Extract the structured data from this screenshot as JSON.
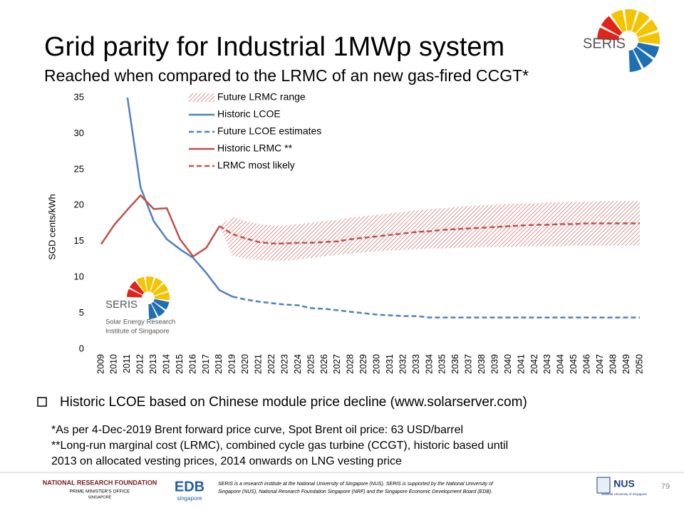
{
  "header": {
    "title": "Grid parity for Industrial 1MWp system",
    "subtitle": "Reached when compared to the LRMC of an new gas-fired CCGT*"
  },
  "logo": {
    "text": "SERIS"
  },
  "inset_logo": {
    "name": "SERIS",
    "lines": [
      "Solar Energy Research",
      "Institute of Singapore"
    ]
  },
  "chart_data": {
    "type": "line",
    "y_label": "SGD cents/kWh",
    "categories": [
      "2009",
      "2010",
      "2011",
      "2012",
      "2013",
      "2014",
      "2015",
      "2016",
      "2017",
      "2018",
      "2019",
      "2020",
      "2021",
      "2022",
      "2023",
      "2024",
      "2025",
      "2026",
      "2027",
      "2028",
      "2029",
      "2030",
      "2031",
      "2032",
      "2033",
      "2034",
      "2035",
      "2036",
      "2037",
      "2038",
      "2039",
      "2040",
      "2041",
      "2042",
      "2043",
      "2044",
      "2045",
      "2046",
      "2047",
      "2048",
      "2049",
      "2050"
    ],
    "ylim": [
      0,
      35
    ],
    "yticks": [
      0,
      5,
      10,
      15,
      20,
      25,
      30,
      35
    ],
    "grid": false,
    "legend": "top-left",
    "series": [
      {
        "name": "Future LRMC range",
        "color": "#c0504d",
        "type": "band",
        "low": [
          null,
          null,
          null,
          null,
          null,
          null,
          null,
          null,
          null,
          17.1,
          13.0,
          12.6,
          12.4,
          12.3,
          12.3,
          12.5,
          12.7,
          12.9,
          13.1,
          13.3,
          13.5,
          13.6,
          13.7,
          13.8,
          13.9,
          14.0,
          14.0,
          14.1,
          14.1,
          14.2,
          14.2,
          14.2,
          14.3,
          14.3,
          14.3,
          14.3,
          14.4,
          14.4,
          14.4,
          14.4,
          14.4,
          14.4
        ],
        "high": [
          null,
          null,
          null,
          null,
          null,
          null,
          null,
          null,
          null,
          17.1,
          18.4,
          17.8,
          17.4,
          17.2,
          17.2,
          17.4,
          17.6,
          17.8,
          18.0,
          18.3,
          18.5,
          18.7,
          18.9,
          19.1,
          19.3,
          19.5,
          19.6,
          19.8,
          19.9,
          20.0,
          20.1,
          20.2,
          20.3,
          20.3,
          20.4,
          20.4,
          20.5,
          20.5,
          20.6,
          20.6,
          20.6,
          20.6
        ]
      },
      {
        "name": "Historic LCOE",
        "color": "#4f81bd",
        "style": "solid",
        "values": [
          null,
          null,
          35,
          22.5,
          17.8,
          15.3,
          13.9,
          12.7,
          10.6,
          8.2,
          7.3,
          null,
          null,
          null,
          null,
          null,
          null,
          null,
          null,
          null,
          null,
          null,
          null,
          null,
          null,
          null,
          null,
          null,
          null,
          null,
          null,
          null,
          null,
          null,
          null,
          null,
          null,
          null,
          null,
          null,
          null,
          null
        ]
      },
      {
        "name": "Future LCOE estimates",
        "color": "#4f81bd",
        "style": "dashed",
        "values": [
          null,
          null,
          null,
          null,
          null,
          null,
          null,
          null,
          null,
          null,
          7.3,
          6.9,
          6.6,
          6.4,
          6.2,
          6.1,
          5.7,
          5.6,
          5.4,
          5.2,
          5.0,
          4.8,
          4.7,
          4.6,
          4.6,
          4.4,
          4.4,
          4.4,
          4.4,
          4.4,
          4.4,
          4.4,
          4.4,
          4.4,
          4.4,
          4.4,
          4.4,
          4.4,
          4.4,
          4.4,
          4.4,
          4.4
        ]
      },
      {
        "name": "Historic LRMC **",
        "color": "#c0504d",
        "style": "solid",
        "values": [
          14.6,
          17.3,
          19.4,
          21.4,
          19.5,
          19.6,
          15.3,
          12.9,
          14.1,
          17.1,
          null,
          null,
          null,
          null,
          null,
          null,
          null,
          null,
          null,
          null,
          null,
          null,
          null,
          null,
          null,
          null,
          null,
          null,
          null,
          null,
          null,
          null,
          null,
          null,
          null,
          null,
          null,
          null,
          null,
          null,
          null,
          null
        ]
      },
      {
        "name": "LRMC most likely",
        "color": "#c0504d",
        "style": "dashed",
        "values": [
          null,
          null,
          null,
          null,
          null,
          null,
          null,
          null,
          null,
          17.1,
          16.0,
          15.4,
          14.9,
          14.7,
          14.7,
          14.8,
          14.8,
          14.9,
          15.0,
          15.3,
          15.5,
          15.7,
          15.9,
          16.1,
          16.3,
          16.4,
          16.6,
          16.7,
          16.8,
          16.9,
          17.0,
          17.1,
          17.2,
          17.3,
          17.3,
          17.4,
          17.4,
          17.5,
          17.5,
          17.5,
          17.5,
          17.5
        ]
      }
    ]
  },
  "bullet": "Historic LCOE based on Chinese module price decline (www.solarserver.com)",
  "notes": [
    "*As per 4-Dec-2019 Brent forward price curve, Spot Brent oil price: 63 USD/barrel",
    "**Long-run marginal cost (LRMC), combined cycle gas turbine (CCGT), historic based until",
    "2013 on allocated vesting prices, 2014 onwards on LNG vesting price"
  ],
  "footer": {
    "nrf": "NATIONAL RESEARCH FOUNDATION",
    "pmo": "PRIME MINISTER'S OFFICE",
    "sg": "SINGAPORE",
    "edb": "EDB",
    "edb_sub": "singapore",
    "text": [
      "SERIS is a research institute at the National University of Singapore (NUS). SERIS is supported by the National University of",
      "Singapore (NUS), National Research Foundation Singapore (NRF) and the Singapore Economic Development Board (EDB)."
    ],
    "nus": "NUS",
    "nus_sub": "National University of Singapore",
    "page": "79"
  }
}
